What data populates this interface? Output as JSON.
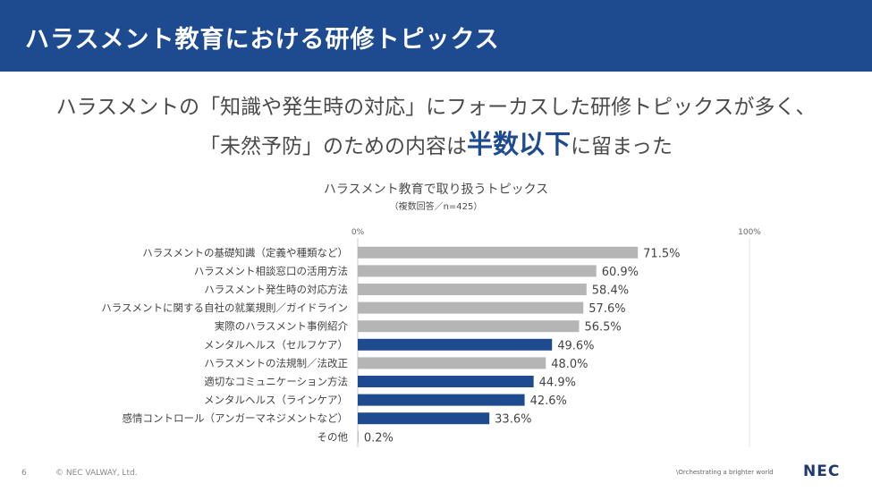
{
  "slide": {
    "title": "ハラスメント教育における研修トピックス",
    "headline_line1": "ハラスメントの「知識や発生時の対応」にフォーカスした研修トピックスが多く、",
    "headline_line2_before": "「未然予防」のための内容は",
    "headline_line2_emphasis": "半数以下",
    "headline_line2_after": "に留まった"
  },
  "footer": {
    "page_number": "6",
    "copyright": "© NEC VALWAY, Ltd.",
    "tagline": "\\Orchestrating a brighter world",
    "logo": "NEC"
  },
  "colors": {
    "header_bg": "#1e4b8f",
    "bar_gray": "#b5b5b5",
    "bar_blue": "#1e4b8f"
  },
  "chart_data": {
    "type": "bar",
    "orientation": "horizontal",
    "title": "ハラスメント教育で取り扱うトピックス",
    "subtitle": "（複数回答／n=425）",
    "axis_min_label": "0%",
    "axis_max_label": "100%",
    "xlim": [
      0,
      100
    ],
    "categories": [
      "ハラスメントの基礎知識（定義や種類など）",
      "ハラスメント相談窓口の活用方法",
      "ハラスメント発生時の対応方法",
      "ハラスメントに関する自社の就業規則／ガイドライン",
      "実際のハラスメント事例紹介",
      "メンタルヘルス（セルフケア）",
      "ハラスメントの法規制／法改正",
      "適切なコミュニケーション方法",
      "メンタルヘルス（ラインケア）",
      "感情コントロール（アンガーマネジメントなど）",
      "その他"
    ],
    "values": [
      71.5,
      60.9,
      58.4,
      57.6,
      56.5,
      49.6,
      48.0,
      44.9,
      42.6,
      33.6,
      0.2
    ],
    "value_labels": [
      "71.5%",
      "60.9%",
      "58.4%",
      "57.6%",
      "56.5%",
      "49.6%",
      "48.0%",
      "44.9%",
      "42.6%",
      "33.6%",
      "0.2%"
    ],
    "highlight": [
      false,
      false,
      false,
      false,
      false,
      true,
      false,
      true,
      true,
      true,
      false
    ]
  }
}
